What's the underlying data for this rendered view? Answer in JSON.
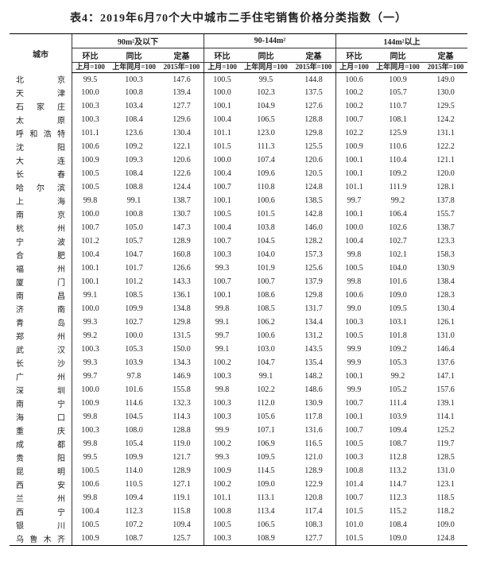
{
  "title": "表4：2019年6月70个大中城市二手住宅销售价格分类指数（一）",
  "col_city": "城市",
  "groups": [
    "90m²及以下",
    "90-144m²",
    "144m²以上"
  ],
  "sub_headers": {
    "huanbi": "环比",
    "tongbi": "同比",
    "dingji": "定基",
    "base_month": "上月=100",
    "base_year": "上年同月=100",
    "base_2015": "2015年=100"
  },
  "rows": [
    {
      "city": "北　京",
      "v": [
        99.5,
        100.3,
        147.6,
        100.5,
        99.5,
        144.8,
        100.6,
        100.9,
        149.0
      ]
    },
    {
      "city": "天　津",
      "v": [
        100.0,
        100.8,
        139.4,
        100.0,
        102.3,
        137.5,
        100.2,
        105.7,
        130.0
      ]
    },
    {
      "city": "石家庄",
      "v": [
        100.3,
        103.4,
        127.7,
        100.1,
        104.9,
        127.6,
        100.2,
        110.7,
        129.5
      ]
    },
    {
      "city": "太　原",
      "v": [
        100.3,
        108.4,
        129.6,
        100.4,
        106.5,
        128.8,
        100.7,
        108.1,
        124.2
      ]
    },
    {
      "city": "呼和浩特",
      "v": [
        101.1,
        123.6,
        130.4,
        101.1,
        123.0,
        129.8,
        102.2,
        125.9,
        131.1
      ]
    },
    {
      "city": "沈　阳",
      "v": [
        100.6,
        109.2,
        122.1,
        101.5,
        111.3,
        125.5,
        100.9,
        110.6,
        122.2
      ]
    },
    {
      "city": "大　连",
      "v": [
        100.9,
        109.3,
        120.6,
        100.0,
        107.4,
        120.6,
        100.1,
        110.4,
        121.1
      ]
    },
    {
      "city": "长　春",
      "v": [
        100.5,
        108.4,
        122.6,
        100.4,
        109.6,
        120.5,
        100.1,
        109.2,
        120.0
      ]
    },
    {
      "city": "哈尔滨",
      "v": [
        100.5,
        108.8,
        124.4,
        100.7,
        110.8,
        124.8,
        101.1,
        111.9,
        128.1
      ]
    },
    {
      "city": "上　海",
      "v": [
        99.8,
        99.1,
        138.7,
        100.1,
        100.6,
        138.5,
        99.7,
        99.2,
        137.8
      ]
    },
    {
      "city": "南　京",
      "v": [
        100.0,
        100.8,
        130.7,
        100.5,
        101.5,
        142.8,
        100.1,
        106.4,
        155.7
      ]
    },
    {
      "city": "杭　州",
      "v": [
        100.7,
        105.0,
        147.3,
        100.4,
        103.8,
        146.0,
        100.0,
        102.6,
        138.7
      ]
    },
    {
      "city": "宁　波",
      "v": [
        101.2,
        105.7,
        128.9,
        100.7,
        104.5,
        128.2,
        100.4,
        102.7,
        123.3
      ]
    },
    {
      "city": "合　肥",
      "v": [
        100.4,
        104.7,
        160.8,
        100.3,
        104.0,
        157.3,
        99.8,
        102.1,
        158.3
      ]
    },
    {
      "city": "福　州",
      "v": [
        100.1,
        101.7,
        126.6,
        99.3,
        101.9,
        125.6,
        100.5,
        104.0,
        130.9
      ]
    },
    {
      "city": "厦　门",
      "v": [
        100.1,
        101.2,
        143.3,
        100.7,
        100.7,
        137.9,
        99.8,
        101.6,
        138.4
      ]
    },
    {
      "city": "南　昌",
      "v": [
        99.1,
        108.5,
        136.1,
        100.1,
        108.6,
        129.8,
        100.6,
        109.0,
        128.3
      ]
    },
    {
      "city": "济　南",
      "v": [
        100.0,
        109.9,
        134.8,
        99.8,
        108.5,
        131.7,
        99.0,
        109.5,
        130.4
      ]
    },
    {
      "city": "青　岛",
      "v": [
        99.3,
        102.7,
        129.8,
        99.1,
        106.2,
        134.4,
        100.3,
        103.1,
        126.1
      ]
    },
    {
      "city": "郑　州",
      "v": [
        99.2,
        100.0,
        131.5,
        99.7,
        100.6,
        131.2,
        100.5,
        101.8,
        131.0
      ]
    },
    {
      "city": "武　汉",
      "v": [
        100.3,
        105.3,
        150.0,
        99.1,
        103.0,
        143.5,
        99.9,
        109.2,
        146.4
      ]
    },
    {
      "city": "长　沙",
      "v": [
        99.3,
        103.9,
        134.3,
        100.2,
        104.7,
        135.4,
        99.9,
        105.3,
        137.6
      ]
    },
    {
      "city": "广　州",
      "v": [
        99.7,
        97.8,
        146.9,
        100.3,
        99.1,
        148.2,
        100.1,
        99.2,
        147.1
      ]
    },
    {
      "city": "深　圳",
      "v": [
        100.0,
        101.6,
        155.8,
        99.8,
        102.2,
        148.6,
        99.9,
        105.2,
        157.6
      ]
    },
    {
      "city": "南　宁",
      "v": [
        100.9,
        114.6,
        132.3,
        100.3,
        112.0,
        130.9,
        100.7,
        111.4,
        139.1
      ]
    },
    {
      "city": "海　口",
      "v": [
        99.8,
        104.5,
        114.3,
        100.3,
        105.6,
        117.8,
        100.1,
        103.9,
        114.1
      ]
    },
    {
      "city": "重　庆",
      "v": [
        100.3,
        108.0,
        128.8,
        99.9,
        107.1,
        131.6,
        100.7,
        109.4,
        125.2
      ]
    },
    {
      "city": "成　都",
      "v": [
        99.8,
        105.4,
        119.0,
        100.2,
        106.9,
        116.5,
        100.5,
        108.7,
        119.7
      ]
    },
    {
      "city": "贵　阳",
      "v": [
        99.5,
        109.9,
        121.7,
        99.3,
        109.5,
        121.0,
        100.3,
        112.8,
        128.5
      ]
    },
    {
      "city": "昆　明",
      "v": [
        100.5,
        114.0,
        128.9,
        100.9,
        114.5,
        128.9,
        100.8,
        113.2,
        131.0
      ]
    },
    {
      "city": "西　安",
      "v": [
        100.6,
        110.5,
        127.1,
        100.2,
        109.0,
        122.9,
        101.4,
        114.7,
        123.1
      ]
    },
    {
      "city": "兰　州",
      "v": [
        99.8,
        109.4,
        119.1,
        101.1,
        113.1,
        120.8,
        100.7,
        112.3,
        118.5
      ]
    },
    {
      "city": "西　宁",
      "v": [
        100.4,
        112.3,
        115.8,
        100.8,
        113.4,
        117.4,
        101.5,
        115.2,
        118.2
      ]
    },
    {
      "city": "银　川",
      "v": [
        100.5,
        107.2,
        109.4,
        100.5,
        106.5,
        108.3,
        101.0,
        108.4,
        109.0
      ]
    },
    {
      "city": "乌鲁木齐",
      "v": [
        100.9,
        108.7,
        125.7,
        100.3,
        108.9,
        127.7,
        101.5,
        109.0,
        124.8
      ]
    }
  ]
}
